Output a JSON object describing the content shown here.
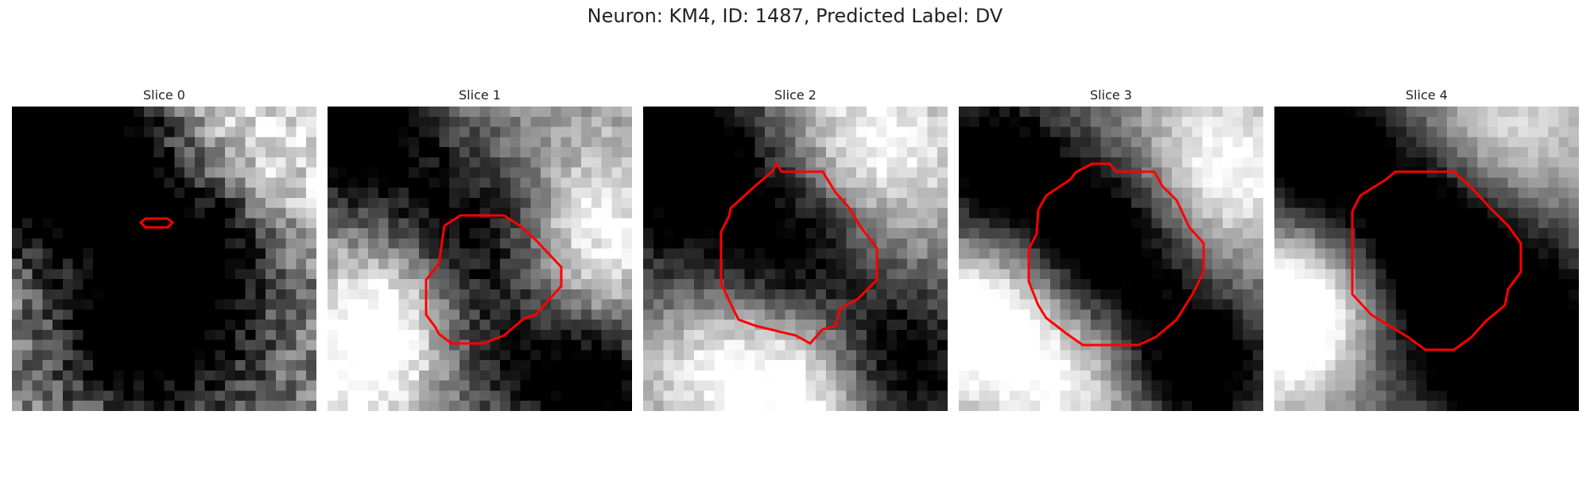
{
  "figure": {
    "title": "Neuron: KM4, ID: 1487, Predicted Label: DV"
  },
  "panels": [
    {
      "title": "Slice 0"
    },
    {
      "title": "Slice 1"
    },
    {
      "title": "Slice 2"
    },
    {
      "title": "Slice 3"
    },
    {
      "title": "Slice 4"
    }
  ],
  "colors": {
    "contour": "#ff0000",
    "background": "#ffffff"
  }
}
